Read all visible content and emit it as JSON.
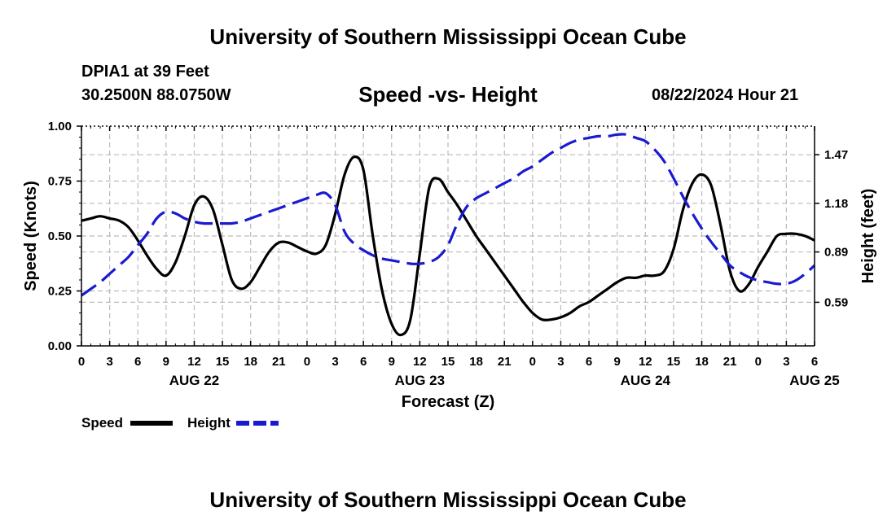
{
  "header": {
    "title": "University of Southern Mississippi Ocean Cube",
    "station": "DPIA1 at 39 Feet",
    "coords": "30.2500N  88.0750W",
    "subtitle": "Speed -vs- Height",
    "datetime": "08/22/2024 Hour 21"
  },
  "footer": {
    "title": "University of Southern Mississippi Ocean Cube"
  },
  "chart_data": {
    "type": "line",
    "title": "Speed -vs- Height",
    "xlabel": "Forecast (Z)",
    "ylabel": "Speed (Knots)",
    "y2label": "Height (feet)",
    "x_range_hours": [
      0,
      78
    ],
    "x_tick_labels": [
      "0",
      "3",
      "6",
      "9",
      "12",
      "15",
      "18",
      "21",
      "0",
      "3",
      "6",
      "9",
      "12",
      "15",
      "18",
      "21",
      "0",
      "3",
      "6",
      "9",
      "12",
      "15",
      "18",
      "21",
      "0",
      "3",
      "6"
    ],
    "day_labels": [
      {
        "label": "AUG 22",
        "hour": 12
      },
      {
        "label": "AUG 23",
        "hour": 36
      },
      {
        "label": "AUG 24",
        "hour": 60
      },
      {
        "label": "AUG 25",
        "hour": 78
      }
    ],
    "ylim": [
      0,
      1
    ],
    "y_ticks": [
      0,
      0.25,
      0.5,
      0.75,
      1
    ],
    "y_tick_labels": [
      "0.00",
      "0.25",
      "0.50",
      "0.75",
      "1.00"
    ],
    "y2_ticks": [
      0.59,
      0.89,
      1.18,
      1.47
    ],
    "y2_tick_labels": [
      "0.59",
      "0.89",
      "1.18",
      "1.47"
    ],
    "y2lim": [
      0.33,
      1.64
    ],
    "grid": true,
    "series": [
      {
        "name": "Speed",
        "axis": "left",
        "color": "#000000",
        "dash": "solid",
        "x": [
          0,
          1,
          2,
          3,
          4,
          5,
          6,
          7,
          8,
          9,
          10,
          11,
          12,
          13,
          14,
          15,
          16,
          17,
          18,
          19,
          20,
          21,
          22,
          23,
          24,
          25,
          26,
          27,
          28,
          29,
          30,
          31,
          32,
          33,
          34,
          35,
          36,
          37,
          38,
          39,
          40,
          41,
          42,
          43,
          44,
          45,
          46,
          47,
          48,
          49,
          50,
          51,
          52,
          53,
          54,
          55,
          56,
          57,
          58,
          59,
          60,
          61,
          62,
          63,
          64,
          65,
          66,
          67,
          68,
          69,
          70,
          71,
          72,
          73,
          74,
          75,
          76,
          77,
          78
        ],
        "values": [
          0.57,
          0.58,
          0.59,
          0.58,
          0.57,
          0.54,
          0.48,
          0.41,
          0.35,
          0.32,
          0.38,
          0.5,
          0.64,
          0.68,
          0.62,
          0.46,
          0.3,
          0.26,
          0.29,
          0.36,
          0.43,
          0.47,
          0.47,
          0.45,
          0.43,
          0.42,
          0.46,
          0.6,
          0.78,
          0.86,
          0.8,
          0.5,
          0.25,
          0.1,
          0.05,
          0.12,
          0.42,
          0.72,
          0.76,
          0.7,
          0.64,
          0.57,
          0.5,
          0.44,
          0.38,
          0.32,
          0.26,
          0.2,
          0.15,
          0.12,
          0.12,
          0.13,
          0.15,
          0.18,
          0.2,
          0.23,
          0.26,
          0.29,
          0.31,
          0.31,
          0.32,
          0.32,
          0.34,
          0.44,
          0.62,
          0.74,
          0.78,
          0.73,
          0.55,
          0.34,
          0.25,
          0.28,
          0.36,
          0.43,
          0.5,
          0.51,
          0.51,
          0.5,
          0.48
        ]
      },
      {
        "name": "Height",
        "axis": "right",
        "color": "#1a1ad0",
        "dash": "dashed",
        "x": [
          0,
          1,
          2,
          3,
          4,
          5,
          6,
          7,
          8,
          9,
          10,
          11,
          12,
          13,
          14,
          15,
          16,
          17,
          18,
          19,
          20,
          21,
          22,
          23,
          24,
          25,
          26,
          27,
          28,
          29,
          30,
          31,
          32,
          33,
          34,
          35,
          36,
          37,
          38,
          39,
          40,
          41,
          42,
          43,
          44,
          45,
          46,
          47,
          48,
          49,
          50,
          51,
          52,
          53,
          54,
          55,
          56,
          57,
          58,
          59,
          60,
          61,
          62,
          63,
          64,
          65,
          66,
          67,
          68,
          69,
          70,
          71,
          72,
          73,
          74,
          75,
          76,
          77,
          78
        ],
        "values": [
          0.63,
          0.67,
          0.71,
          0.76,
          0.81,
          0.86,
          0.93,
          1.0,
          1.09,
          1.13,
          1.12,
          1.09,
          1.07,
          1.06,
          1.06,
          1.06,
          1.06,
          1.07,
          1.09,
          1.11,
          1.13,
          1.15,
          1.17,
          1.19,
          1.21,
          1.23,
          1.24,
          1.17,
          1.01,
          0.94,
          0.9,
          0.87,
          0.85,
          0.84,
          0.83,
          0.82,
          0.82,
          0.83,
          0.86,
          0.93,
          1.06,
          1.16,
          1.21,
          1.24,
          1.27,
          1.3,
          1.33,
          1.37,
          1.4,
          1.44,
          1.48,
          1.51,
          1.54,
          1.56,
          1.57,
          1.58,
          1.58,
          1.59,
          1.59,
          1.57,
          1.55,
          1.5,
          1.43,
          1.33,
          1.22,
          1.12,
          1.03,
          0.95,
          0.88,
          0.81,
          0.77,
          0.74,
          0.72,
          0.71,
          0.7,
          0.7,
          0.72,
          0.76,
          0.81
        ]
      }
    ],
    "legend": {
      "position": "bottom-left",
      "entries": [
        {
          "label": "Speed",
          "color": "#000000",
          "dash": "solid"
        },
        {
          "label": "Height",
          "color": "#1a1ad0",
          "dash": "dashed"
        }
      ]
    }
  }
}
